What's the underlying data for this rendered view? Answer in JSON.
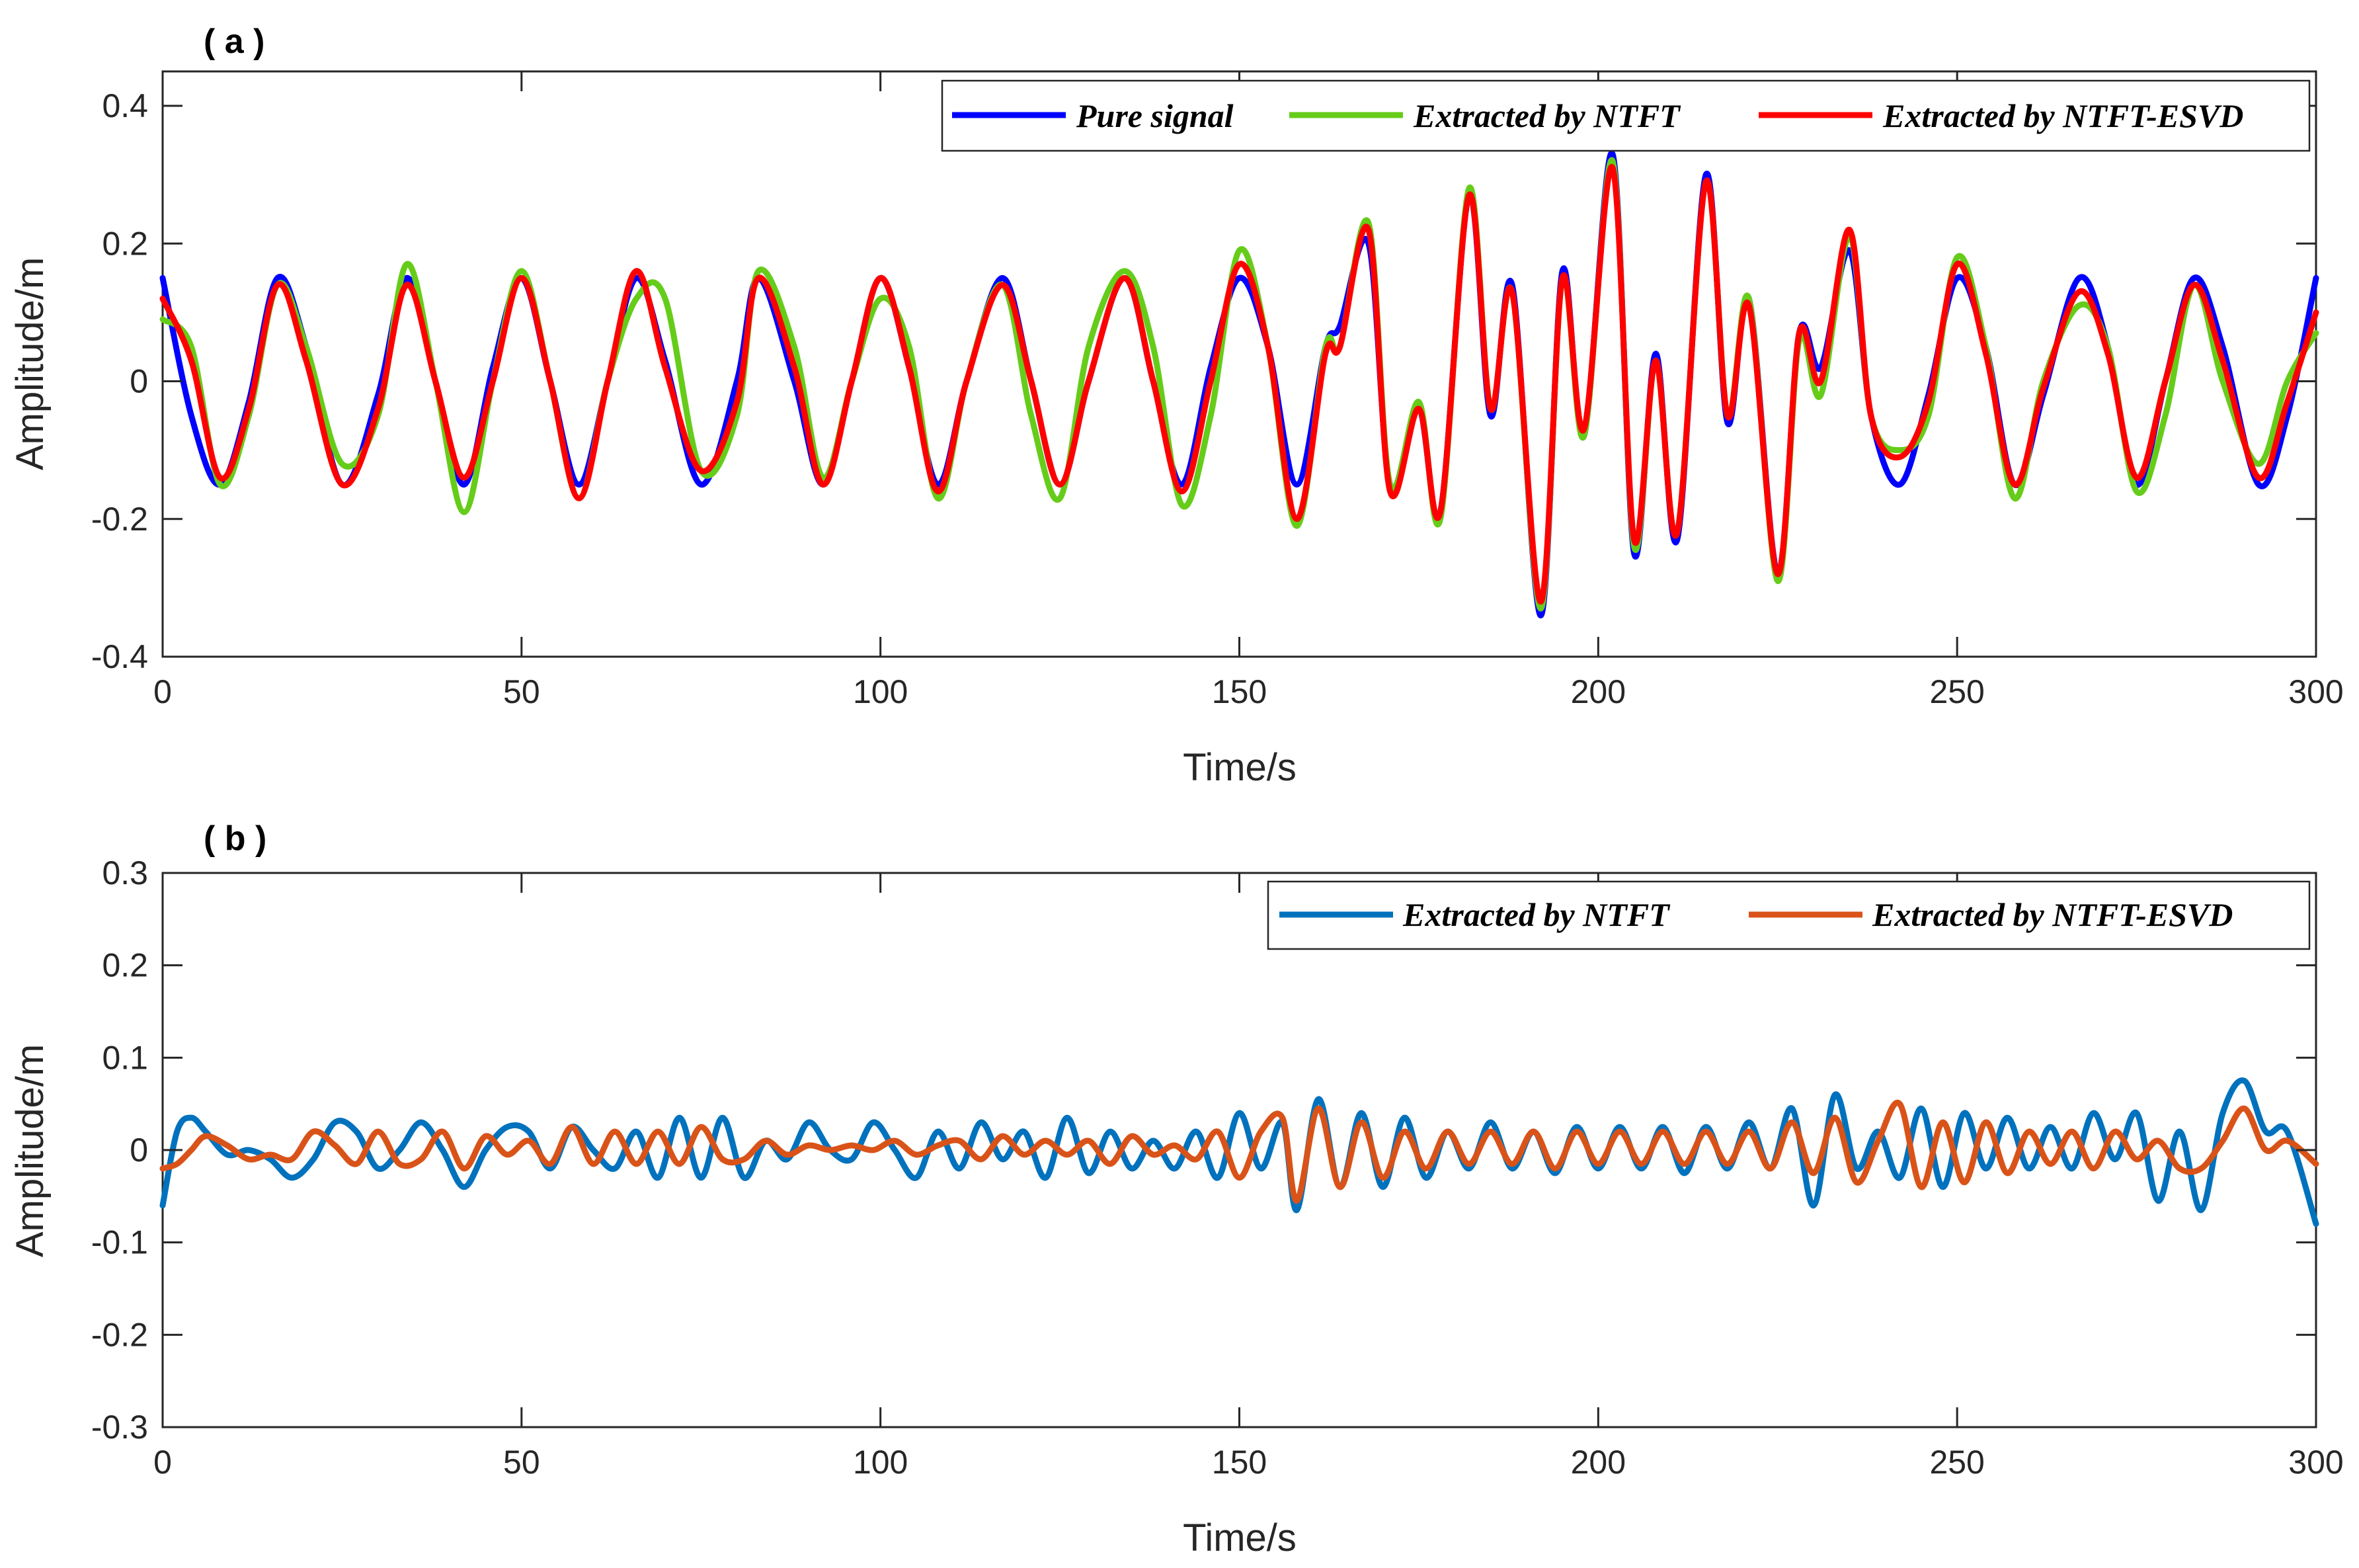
{
  "chart_data": [
    {
      "type": "line",
      "panel_label": "( a )",
      "xlabel": "Time/s",
      "ylabel": "Amplitude/m",
      "xlim": [
        0,
        300
      ],
      "ylim": [
        -0.4,
        0.45
      ],
      "xticks": [
        0,
        50,
        100,
        150,
        200,
        250,
        300
      ],
      "xtick_labels": [
        "0",
        "50",
        "100",
        "150",
        "200",
        "250",
        "300"
      ],
      "yticks": [
        -0.4,
        -0.2,
        0,
        0.2,
        0.4
      ],
      "ytick_labels": [
        "-0.4",
        "-0.2",
        "0",
        "0.2",
        "0.4"
      ],
      "grid": false,
      "legend_position": "top-right",
      "x": [
        0,
        4,
        8,
        12,
        16,
        20,
        25,
        30,
        34,
        38,
        42,
        46,
        50,
        54,
        58,
        62,
        66,
        70,
        75,
        80,
        83,
        88,
        92,
        96,
        100,
        104,
        108,
        112,
        117,
        121,
        125,
        129,
        134,
        138,
        142,
        146,
        150,
        154,
        158,
        162,
        164,
        168,
        171,
        175,
        178,
        182,
        185,
        188,
        192,
        195,
        198,
        202,
        205,
        208,
        211,
        215,
        218,
        221,
        225,
        228,
        231,
        235,
        238,
        242,
        246,
        250,
        254,
        258,
        262,
        267,
        271,
        275,
        279,
        283,
        287,
        292,
        296,
        300
      ],
      "series": [
        {
          "name": "Pure signal",
          "color": "#0000ff",
          "values": [
            0.15,
            -0.05,
            -0.15,
            -0.03,
            0.15,
            0.05,
            -0.15,
            -0.02,
            0.15,
            0.0,
            -0.15,
            0.02,
            0.15,
            0.0,
            -0.15,
            0.0,
            0.15,
            0.03,
            -0.15,
            0.0,
            0.15,
            0.0,
            -0.15,
            0.0,
            0.15,
            0.02,
            -0.15,
            0.0,
            0.15,
            0.0,
            -0.15,
            0.0,
            0.15,
            0.0,
            -0.15,
            0.02,
            0.15,
            0.05,
            -0.15,
            0.05,
            0.08,
            0.2,
            -0.15,
            -0.04,
            -0.19,
            0.27,
            -0.05,
            0.14,
            -0.34,
            0.16,
            -0.08,
            0.33,
            -0.25,
            0.04,
            -0.23,
            0.3,
            -0.06,
            0.12,
            -0.28,
            0.07,
            0.02,
            0.19,
            -0.05,
            -0.15,
            -0.02,
            0.15,
            0.05,
            -0.15,
            -0.02,
            0.15,
            0.05,
            -0.15,
            0.0,
            0.15,
            0.05,
            -0.15,
            -0.05,
            0.15
          ]
        },
        {
          "name": "Extracted by NTFT",
          "color": "#66cc1a",
          "values": [
            0.09,
            0.05,
            -0.15,
            -0.05,
            0.14,
            0.05,
            -0.12,
            -0.05,
            0.17,
            0.0,
            -0.19,
            0.0,
            0.16,
            0.0,
            -0.17,
            0.0,
            0.12,
            0.12,
            -0.13,
            -0.05,
            0.16,
            0.05,
            -0.14,
            0.0,
            0.12,
            0.05,
            -0.17,
            0.0,
            0.14,
            -0.05,
            -0.17,
            0.05,
            0.16,
            0.05,
            -0.18,
            -0.05,
            0.19,
            0.05,
            -0.21,
            0.05,
            0.05,
            0.23,
            -0.15,
            -0.03,
            -0.2,
            0.28,
            -0.04,
            0.13,
            -0.33,
            0.15,
            -0.08,
            0.32,
            -0.24,
            0.03,
            -0.22,
            0.29,
            -0.05,
            0.12,
            -0.29,
            0.06,
            -0.02,
            0.21,
            -0.05,
            -0.1,
            -0.05,
            0.18,
            0.05,
            -0.17,
            0.0,
            0.11,
            0.05,
            -0.16,
            -0.05,
            0.14,
            0.0,
            -0.12,
            0.0,
            0.07
          ]
        },
        {
          "name": "Extracted by NTFT-ESVD",
          "color": "#ff0000",
          "values": [
            0.12,
            0.03,
            -0.14,
            -0.04,
            0.14,
            0.03,
            -0.15,
            -0.04,
            0.14,
            0.0,
            -0.14,
            0.0,
            0.15,
            0.0,
            -0.17,
            0.0,
            0.16,
            0.02,
            -0.13,
            -0.03,
            0.15,
            0.02,
            -0.15,
            0.0,
            0.15,
            0.02,
            -0.16,
            0.0,
            0.14,
            0.0,
            -0.15,
            0.0,
            0.15,
            0.0,
            -0.16,
            0.0,
            0.17,
            0.05,
            -0.2,
            0.04,
            0.05,
            0.22,
            -0.16,
            -0.04,
            -0.19,
            0.27,
            -0.04,
            0.13,
            -0.32,
            0.15,
            -0.07,
            0.31,
            -0.23,
            0.03,
            -0.22,
            0.29,
            -0.05,
            0.11,
            -0.28,
            0.07,
            0.0,
            0.22,
            -0.05,
            -0.11,
            -0.03,
            0.17,
            0.04,
            -0.15,
            -0.01,
            0.13,
            0.04,
            -0.14,
            0.0,
            0.14,
            0.03,
            -0.14,
            -0.03,
            0.1
          ]
        }
      ]
    },
    {
      "type": "line",
      "panel_label": "( b )",
      "xlabel": "Time/s",
      "ylabel": "Amplitude/m",
      "xlim": [
        0,
        300
      ],
      "ylim": [
        -0.3,
        0.3
      ],
      "xticks": [
        0,
        50,
        100,
        150,
        200,
        250,
        300
      ],
      "xtick_labels": [
        "0",
        "50",
        "100",
        "150",
        "200",
        "250",
        "300"
      ],
      "yticks": [
        -0.3,
        -0.2,
        -0.1,
        0,
        0.1,
        0.2,
        0.3
      ],
      "ytick_labels": [
        "-0.3",
        "-0.2",
        "-0.1",
        "0",
        "0.1",
        "0.2",
        "0.3"
      ],
      "grid": false,
      "legend_position": "top-right",
      "x": [
        0,
        2,
        4,
        6,
        9,
        12,
        15,
        18,
        21,
        24,
        27,
        30,
        33,
        36,
        39,
        42,
        45,
        48,
        51,
        54,
        57,
        60,
        63,
        66,
        69,
        72,
        75,
        78,
        81,
        84,
        87,
        90,
        93,
        96,
        99,
        102,
        105,
        108,
        111,
        114,
        117,
        120,
        123,
        126,
        129,
        132,
        135,
        138,
        141,
        144,
        147,
        150,
        153,
        156,
        158,
        161,
        164,
        167,
        170,
        173,
        176,
        179,
        182,
        185,
        188,
        191,
        194,
        197,
        200,
        203,
        206,
        209,
        212,
        215,
        218,
        221,
        224,
        227,
        230,
        233,
        236,
        239,
        242,
        245,
        248,
        251,
        254,
        257,
        260,
        263,
        266,
        269,
        272,
        275,
        278,
        281,
        284,
        287,
        290,
        293,
        296,
        300
      ],
      "series": [
        {
          "name": "Extracted by NTFT",
          "color": "#0072bd",
          "values": [
            -0.06,
            0.02,
            0.035,
            0.02,
            -0.005,
            0.0,
            -0.01,
            -0.03,
            -0.01,
            0.03,
            0.02,
            -0.02,
            0.0,
            0.03,
            0.0,
            -0.04,
            0.0,
            0.025,
            0.02,
            -0.02,
            0.025,
            0.0,
            -0.02,
            0.02,
            -0.03,
            0.035,
            -0.03,
            0.035,
            -0.03,
            0.01,
            -0.01,
            0.03,
            0.0,
            -0.01,
            0.03,
            0.0,
            -0.03,
            0.02,
            -0.02,
            0.03,
            -0.01,
            0.02,
            -0.03,
            0.035,
            -0.025,
            0.02,
            -0.02,
            0.01,
            -0.02,
            0.02,
            -0.03,
            0.04,
            -0.02,
            0.03,
            -0.065,
            0.055,
            -0.04,
            0.04,
            -0.04,
            0.035,
            -0.03,
            0.02,
            -0.02,
            0.03,
            -0.02,
            0.02,
            -0.025,
            0.025,
            -0.02,
            0.025,
            -0.02,
            0.025,
            -0.025,
            0.025,
            -0.02,
            0.03,
            -0.02,
            0.045,
            -0.06,
            0.06,
            -0.02,
            0.02,
            -0.03,
            0.045,
            -0.04,
            0.04,
            -0.02,
            0.035,
            -0.02,
            0.025,
            -0.02,
            0.04,
            -0.01,
            0.04,
            -0.055,
            0.02,
            -0.065,
            0.04,
            0.075,
            0.02,
            0.02,
            -0.08
          ]
        },
        {
          "name": "Extracted by NTFT-ESVD",
          "color": "#d95319",
          "values": [
            -0.02,
            -0.015,
            0.0,
            0.015,
            0.005,
            -0.01,
            -0.005,
            -0.01,
            0.02,
            0.005,
            -0.015,
            0.02,
            -0.015,
            -0.01,
            0.02,
            -0.02,
            0.015,
            -0.005,
            0.01,
            -0.015,
            0.025,
            -0.015,
            0.02,
            -0.015,
            0.02,
            -0.015,
            0.025,
            -0.01,
            -0.01,
            0.01,
            -0.005,
            0.005,
            0.0,
            0.005,
            0.0,
            0.01,
            -0.005,
            0.005,
            0.01,
            -0.01,
            0.015,
            -0.005,
            0.01,
            -0.005,
            0.01,
            -0.015,
            0.015,
            -0.005,
            0.005,
            -0.01,
            0.02,
            -0.03,
            0.02,
            0.035,
            -0.055,
            0.045,
            -0.04,
            0.03,
            -0.03,
            0.02,
            -0.02,
            0.02,
            -0.015,
            0.02,
            -0.015,
            0.02,
            -0.02,
            0.02,
            -0.015,
            0.02,
            -0.015,
            0.02,
            -0.015,
            0.02,
            -0.015,
            0.02,
            -0.02,
            0.03,
            -0.025,
            0.035,
            -0.035,
            0.01,
            0.05,
            -0.04,
            0.03,
            -0.035,
            0.03,
            -0.025,
            0.02,
            -0.015,
            0.02,
            -0.02,
            0.02,
            -0.01,
            0.01,
            -0.02,
            -0.02,
            0.01,
            0.045,
            0.0,
            0.01,
            -0.015
          ]
        }
      ]
    }
  ]
}
